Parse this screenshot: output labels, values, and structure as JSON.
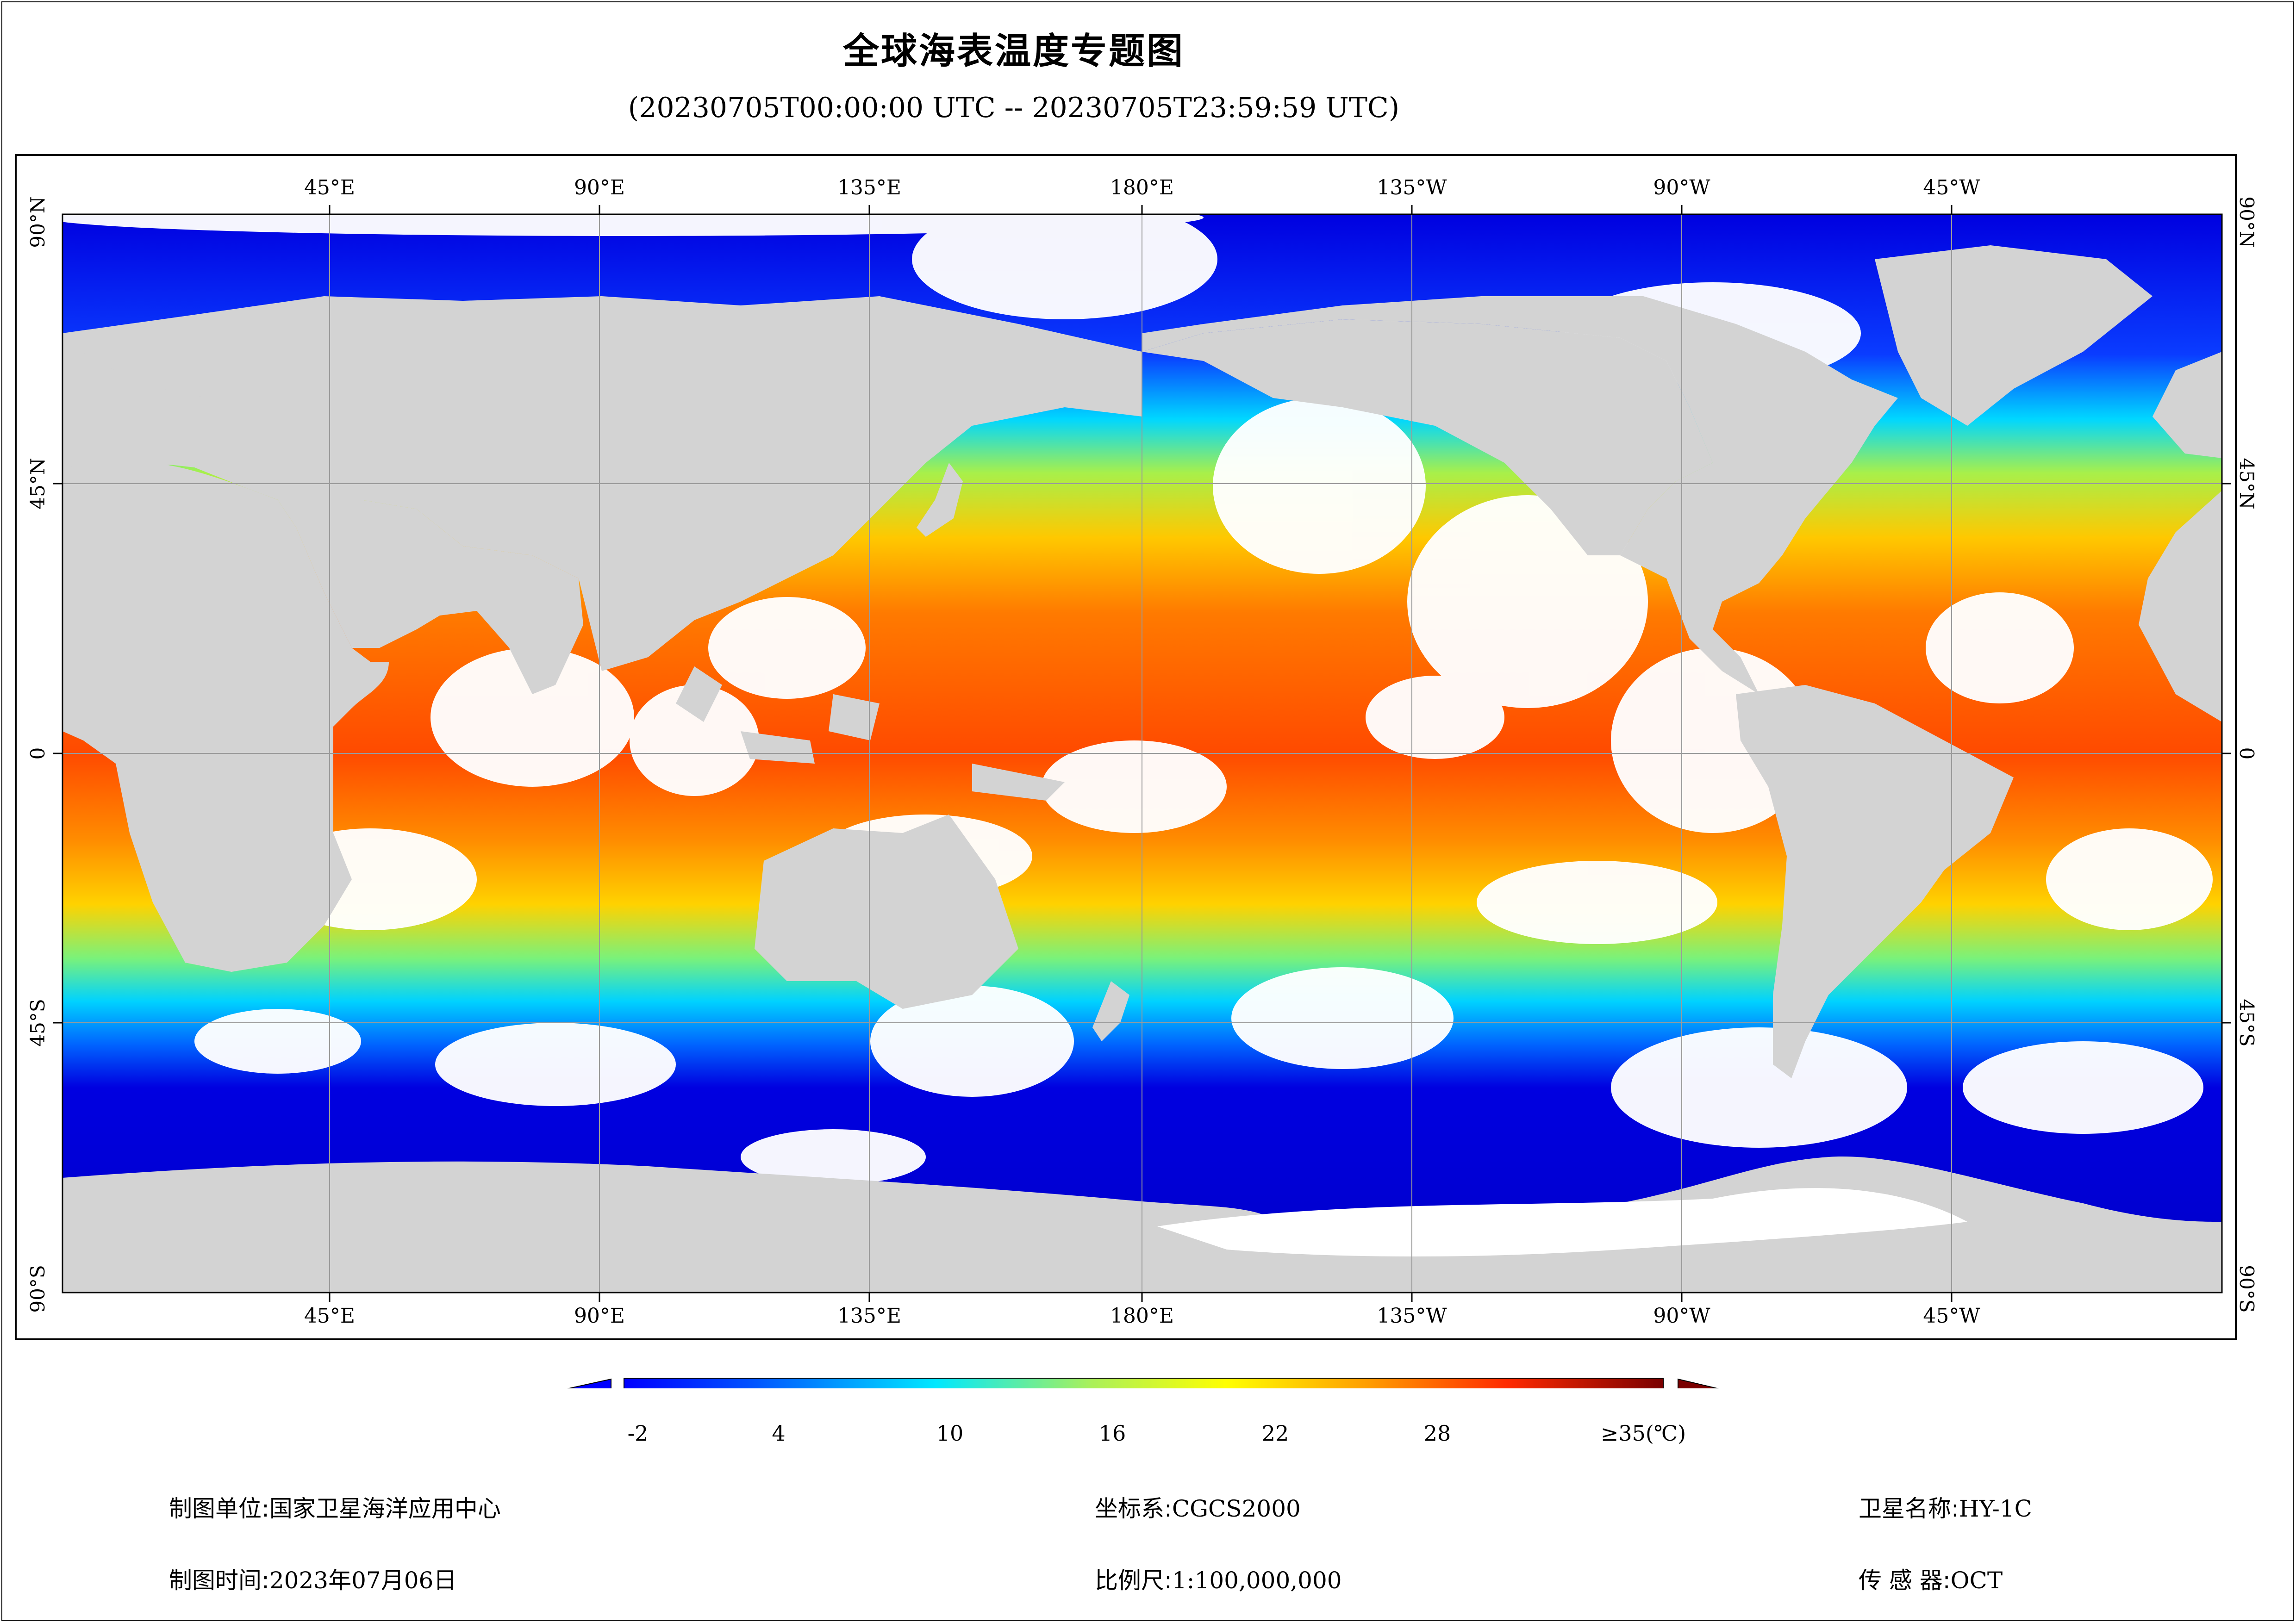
{
  "title": "全球海表温度专题图",
  "subtitle": "(20230705T00:00:00 UTC -- 20230705T23:59:59 UTC)",
  "grid": {
    "lon_labels_top": [
      "45°E",
      "90°E",
      "135°E",
      "180°E",
      "135°W",
      "90°W",
      "45°W"
    ],
    "lon_labels_bottom": [
      "45°E",
      "90°E",
      "135°E",
      "180°E",
      "135°W",
      "90°W",
      "45°W"
    ],
    "lat_labels_left": [
      "90°N",
      "45°N",
      "0",
      "45°S",
      "90°S"
    ],
    "lat_labels_right": [
      "90°N",
      "45°N",
      "0",
      "45°S",
      "90°S"
    ]
  },
  "colorbar": {
    "ticks": [
      "-2",
      "4",
      "10",
      "16",
      "22",
      "28",
      "≥35(℃)"
    ],
    "min": -2,
    "max": 35,
    "colors": {
      "land": "#d3d3d3",
      "cloud": "#ffffff",
      "cold": "#0000ff",
      "cyan": "#00e5ff",
      "yellow": "#ffff00",
      "orange": "#ff8c00",
      "red": "#ff2a00",
      "max": "#7a0000"
    }
  },
  "footer": {
    "agency_label": "制图单位:",
    "agency_value": "国家卫星海洋应用中心",
    "date_label": "制图时间:",
    "date_value": "2023年07月06日",
    "crs_label": "坐标系:",
    "crs_value": "CGCS2000",
    "scale_label": "比例尺:",
    "scale_value": "1:100,000,000",
    "satellite_label": "卫星名称:",
    "satellite_value": "HY-1C",
    "sensor_label": "传 感 器:",
    "sensor_value": "OCT"
  }
}
